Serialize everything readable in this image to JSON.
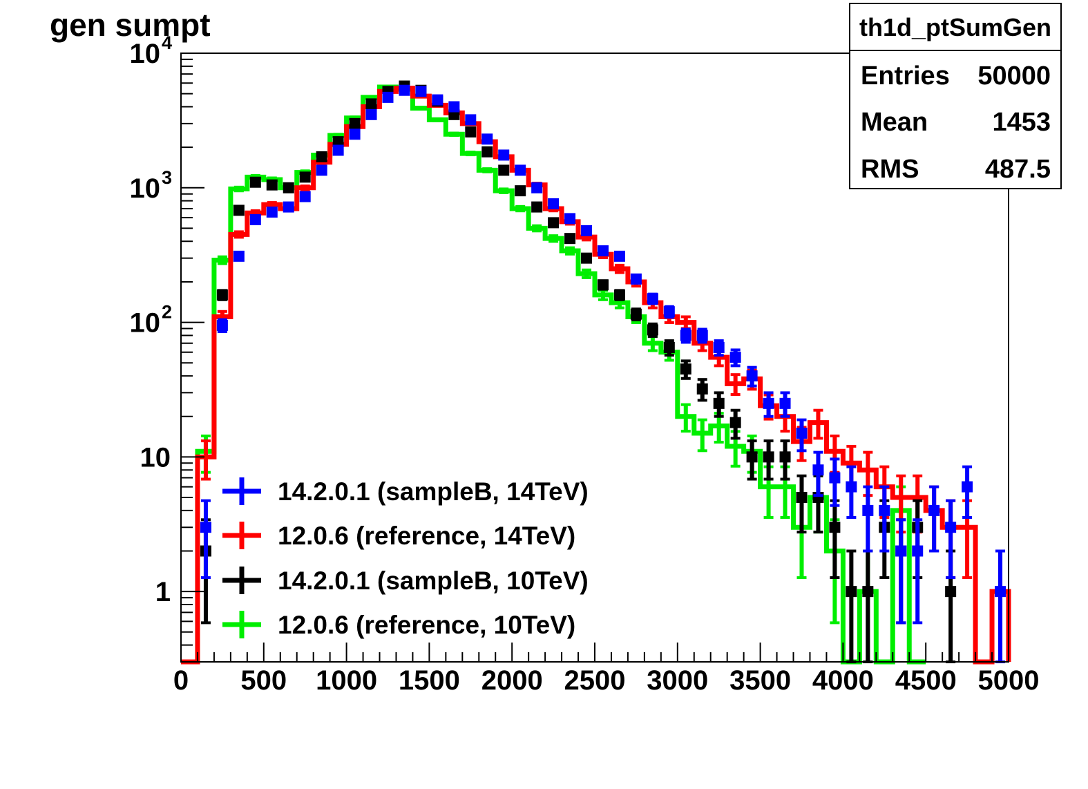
{
  "chart_data": {
    "type": "line",
    "title": "gen sumpt",
    "xlabel": "",
    "ylabel": "",
    "xlim": [
      0,
      5000
    ],
    "ylim": [
      0.3,
      10000
    ],
    "y_scale": "log",
    "grid": false,
    "legend_position": "bottom-left",
    "x_ticks": [
      "0",
      "500",
      "1000",
      "1500",
      "2000",
      "2500",
      "3000",
      "3500",
      "4000",
      "4500",
      "5000"
    ],
    "y_ticks": [
      {
        "value": 10000,
        "base": "10",
        "exp": "4"
      },
      {
        "value": 1000,
        "base": "10",
        "exp": "3"
      },
      {
        "value": 100,
        "base": "10",
        "exp": "2"
      },
      {
        "value": 10,
        "base": "10",
        "exp": ""
      },
      {
        "value": 1,
        "base": "1",
        "exp": ""
      }
    ],
    "stats_box": {
      "name": "th1d_ptSumGen",
      "rows": [
        {
          "label": "Entries",
          "value": "50000"
        },
        {
          "label": "Mean",
          "value": "1453"
        },
        {
          "label": "RMS",
          "value": "487.5"
        }
      ]
    },
    "bin_width": 100,
    "series": [
      {
        "name": "14.2.0.1 (sampleB, 14TeV)",
        "color": "#0000ff",
        "bin_centers": [
          150,
          250,
          350,
          450,
          550,
          650,
          750,
          850,
          950,
          1050,
          1150,
          1250,
          1350,
          1450,
          1550,
          1650,
          1750,
          1850,
          1950,
          2050,
          2150,
          2250,
          2350,
          2450,
          2550,
          2650,
          2750,
          2850,
          2950,
          3050,
          3150,
          3250,
          3350,
          3450,
          3550,
          3650,
          3750,
          3850,
          3950,
          4050,
          4150,
          4250,
          4350,
          4450,
          4550,
          4650,
          4750,
          4850,
          4950
        ],
        "values": [
          3,
          95,
          310,
          580,
          660,
          720,
          860,
          1350,
          1900,
          2500,
          3500,
          4700,
          5300,
          5200,
          4500,
          4000,
          3200,
          2300,
          1750,
          1350,
          1000,
          760,
          590,
          480,
          340,
          310,
          210,
          150,
          120,
          80,
          80,
          65,
          55,
          40,
          25,
          25,
          15,
          8,
          7,
          6,
          4,
          4,
          2,
          2,
          4,
          3,
          6,
          0,
          1
        ]
      },
      {
        "name": "12.0.6 (reference, 14TeV)",
        "color": "#ff0000",
        "bin_centers": [
          50,
          150,
          250,
          350,
          450,
          550,
          650,
          750,
          850,
          950,
          1050,
          1150,
          1250,
          1350,
          1450,
          1550,
          1650,
          1750,
          1850,
          1950,
          2050,
          2150,
          2250,
          2350,
          2450,
          2550,
          2650,
          2750,
          2850,
          2950,
          3050,
          3150,
          3250,
          3350,
          3450,
          3550,
          3650,
          3750,
          3850,
          3950,
          4050,
          4150,
          4250,
          4350,
          4450,
          4550,
          4650,
          4750,
          4850,
          4950
        ],
        "values": [
          0,
          10,
          110,
          450,
          650,
          750,
          700,
          1000,
          1550,
          2100,
          2850,
          4000,
          5200,
          5500,
          4800,
          4100,
          3600,
          3000,
          2200,
          1700,
          1350,
          1050,
          700,
          560,
          430,
          320,
          250,
          200,
          140,
          110,
          100,
          70,
          55,
          35,
          38,
          24,
          20,
          13,
          18,
          11,
          9,
          8,
          6,
          5,
          5,
          4,
          3,
          3,
          0,
          1
        ]
      },
      {
        "name": "14.2.0.1 (sampleB, 10TeV)",
        "color": "#000000",
        "bin_centers": [
          150,
          250,
          350,
          450,
          550,
          650,
          750,
          850,
          950,
          1050,
          1150,
          1250,
          1350,
          1450,
          1550,
          1650,
          1750,
          1850,
          1950,
          2050,
          2150,
          2250,
          2350,
          2450,
          2550,
          2650,
          2750,
          2850,
          2950,
          3050,
          3150,
          3250,
          3350,
          3450,
          3550,
          3650,
          3750,
          3850,
          3950,
          4050,
          4150,
          4250,
          4350,
          4450,
          4650
        ],
        "values": [
          2,
          160,
          680,
          1100,
          1050,
          1000,
          1200,
          1700,
          2200,
          3000,
          4200,
          5200,
          5700,
          5300,
          4400,
          3500,
          2600,
          1850,
          1350,
          950,
          720,
          550,
          420,
          300,
          190,
          160,
          115,
          88,
          65,
          45,
          32,
          25,
          18,
          10,
          10,
          10,
          5,
          5,
          3,
          1,
          1,
          3,
          2,
          3,
          1
        ]
      },
      {
        "name": "12.0.6 (reference, 10TeV)",
        "color": "#00ee00",
        "bin_centers": [
          50,
          150,
          250,
          350,
          450,
          550,
          650,
          750,
          850,
          950,
          1050,
          1150,
          1250,
          1350,
          1450,
          1550,
          1650,
          1750,
          1850,
          1950,
          2050,
          2150,
          2250,
          2350,
          2450,
          2550,
          2650,
          2750,
          2850,
          2950,
          3050,
          3150,
          3250,
          3350,
          3450,
          3550,
          3650,
          3750,
          3850,
          3950,
          4050,
          4150,
          4250,
          4350,
          4450
        ],
        "values": [
          0,
          11,
          290,
          980,
          1200,
          1150,
          1000,
          1300,
          1750,
          2450,
          3300,
          4700,
          5600,
          5400,
          3900,
          3200,
          2500,
          1800,
          1350,
          950,
          700,
          500,
          420,
          340,
          230,
          160,
          140,
          110,
          70,
          60,
          20,
          15,
          17,
          12,
          11,
          6,
          6,
          3,
          5,
          2,
          0,
          1,
          0,
          4,
          0
        ]
      }
    ]
  }
}
